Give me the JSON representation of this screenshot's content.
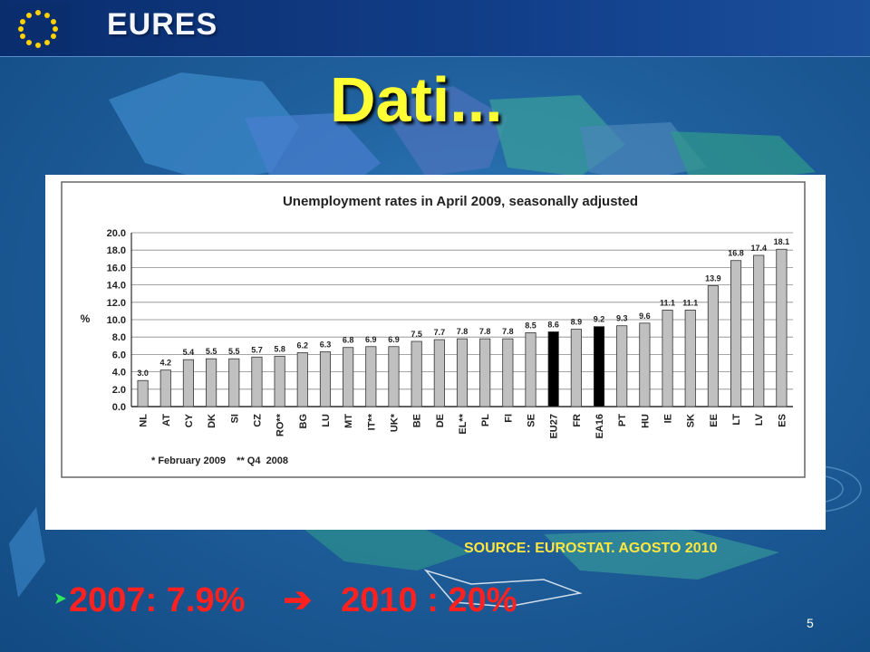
{
  "header": {
    "brand": "EURES"
  },
  "slide": {
    "title": "Dati...",
    "page_number": "5"
  },
  "source_note": "SOURCE: EUROSTAT. AGOSTO 2010",
  "bullet": {
    "text": "2007: 7.9%    ➔   2010 : 20%"
  },
  "colors": {
    "title": "#ffff33",
    "source": "#ffe640",
    "bullet": "#ff2020",
    "bar_default": "#c0c0c0",
    "bar_highlight": "#000000"
  },
  "chart_data": {
    "type": "bar",
    "title": "Unemployment rates in April 2009, seasonally adjusted",
    "ylabel": "%",
    "ylim": [
      0,
      20
    ],
    "yticks": [
      "0.0",
      "2.0",
      "4.0",
      "6.0",
      "8.0",
      "10.0",
      "12.0",
      "14.0",
      "16.0",
      "18.0",
      "20.0"
    ],
    "categories": [
      "NL",
      "AT",
      "CY",
      "DK",
      "SI",
      "CZ",
      "RO**",
      "BG",
      "LU",
      "MT",
      "IT**",
      "UK*",
      "BE",
      "DE",
      "EL**",
      "PL",
      "FI",
      "SE",
      "EU27",
      "FR",
      "EA16",
      "PT",
      "HU",
      "IE",
      "SK",
      "EE",
      "LT",
      "LV",
      "ES"
    ],
    "values": [
      3.0,
      4.2,
      5.4,
      5.5,
      5.5,
      5.7,
      5.8,
      6.2,
      6.3,
      6.8,
      6.9,
      6.9,
      7.5,
      7.7,
      7.8,
      7.8,
      7.8,
      8.5,
      8.6,
      8.9,
      9.2,
      9.3,
      9.6,
      11.1,
      11.1,
      13.9,
      16.8,
      17.4,
      18.1
    ],
    "value_labels": [
      "3.0",
      "4.2",
      "5.4",
      "5.5",
      "5.5",
      "5.7",
      "5.8",
      "6.2",
      "6.3",
      "6.8",
      "6.9",
      "6.9",
      "7.5",
      "7.7",
      "7.8",
      "7.8",
      "7.8",
      "8.5",
      "8.6",
      "8.9",
      "9.2",
      "9.3",
      "9.6",
      "11.1",
      "11.1",
      "13.9",
      "16.8",
      "17.4",
      "18.1"
    ],
    "highlighted": [
      "EU27",
      "EA16"
    ],
    "footnote": "* February 2009    ** Q4  2008",
    "grid": true
  }
}
